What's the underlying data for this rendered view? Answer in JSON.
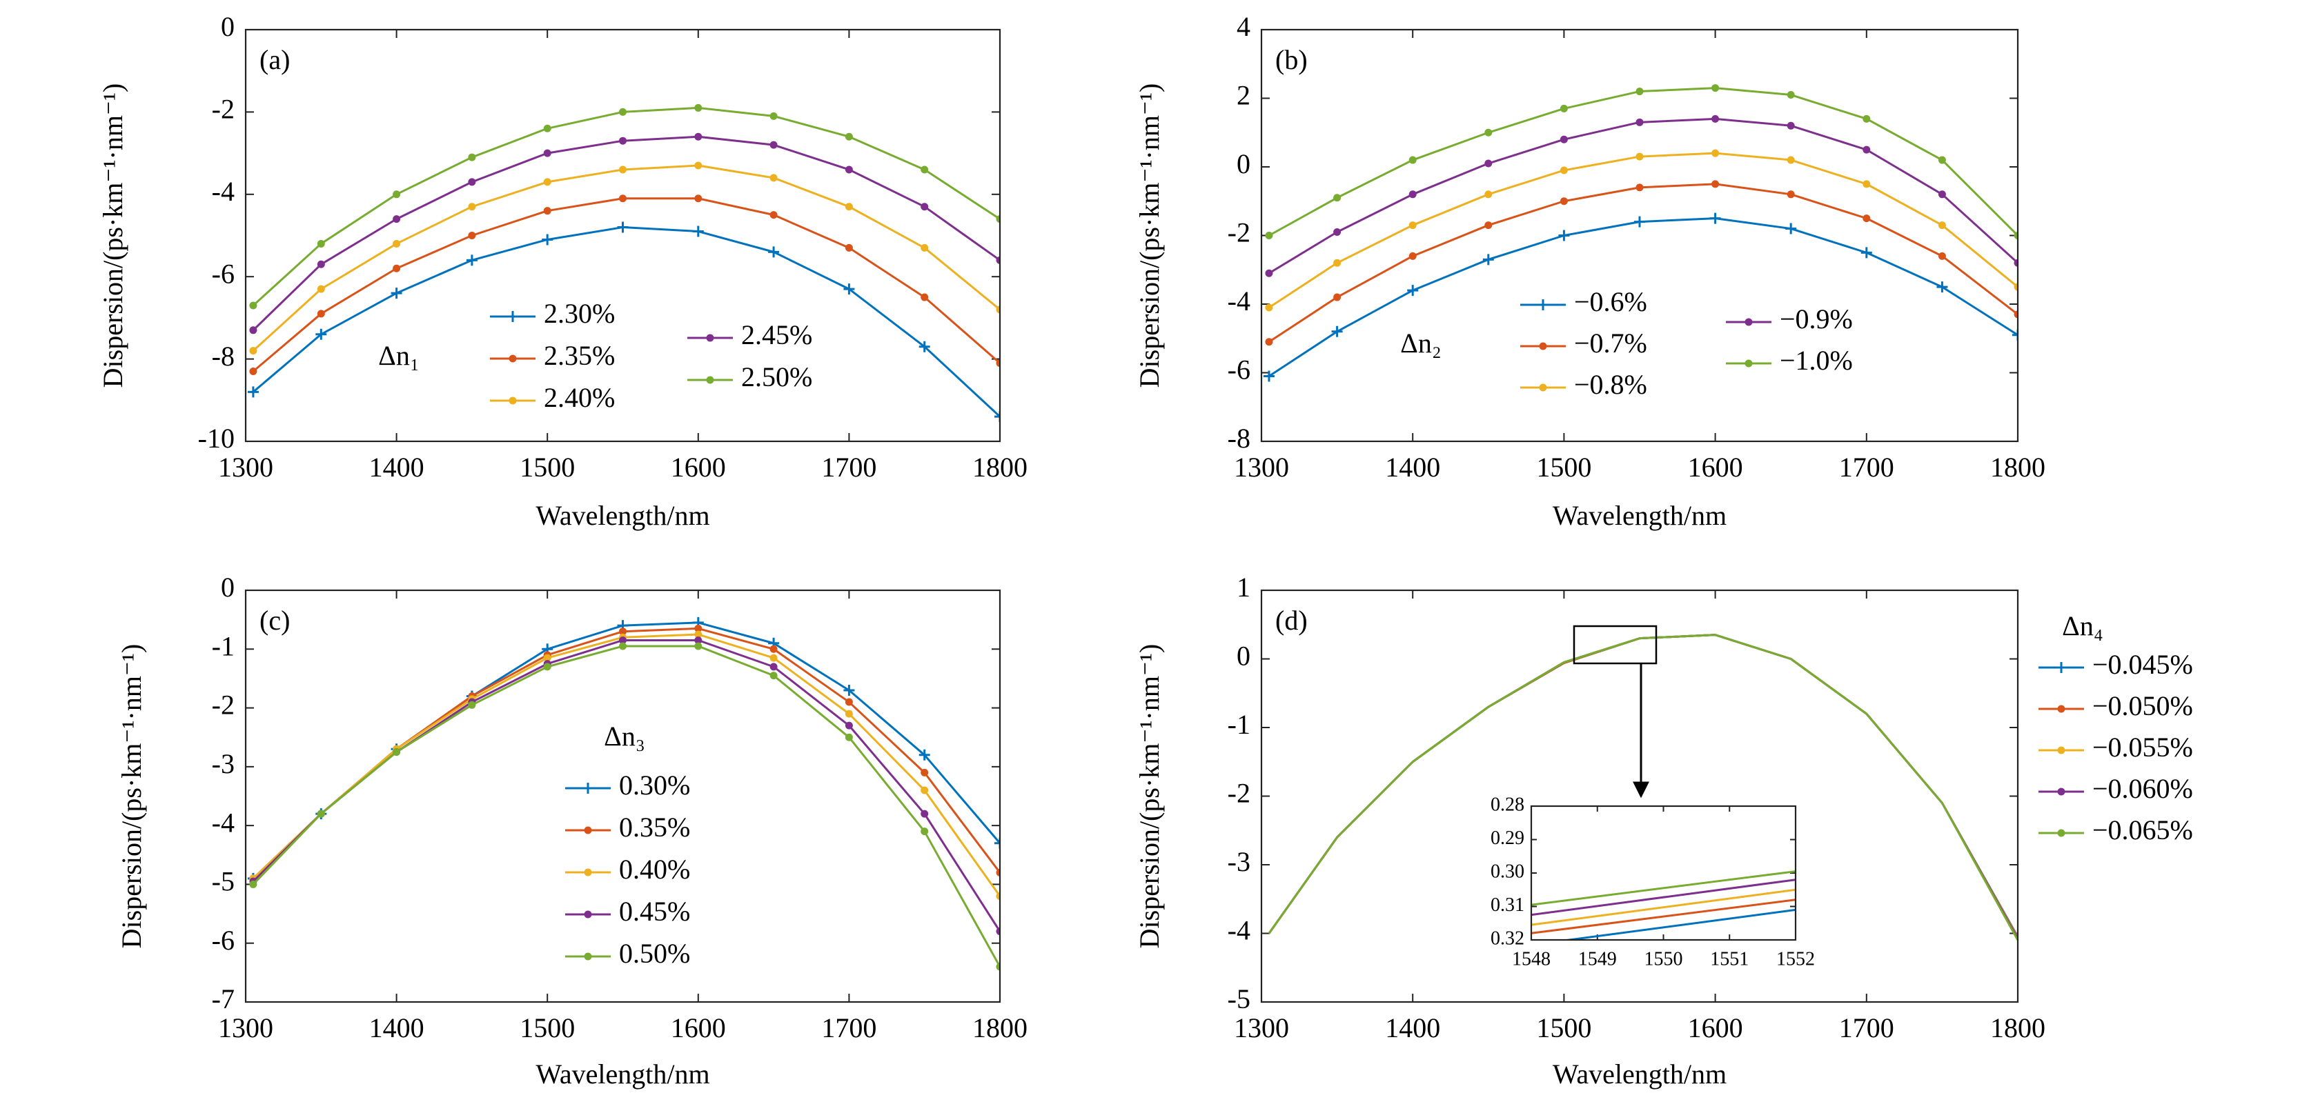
{
  "chart_data": [
    {
      "type": "line",
      "annotation": "(a)",
      "x_label": "Wavelength/nm",
      "y_label": "Dispersion/(ps·km⁻¹·nm⁻¹)",
      "xlim": [
        1300,
        1800
      ],
      "xticks": [
        1300,
        1400,
        1500,
        1600,
        1700,
        1800
      ],
      "ylim": [
        -10,
        0
      ],
      "yticks": [
        -10,
        -8,
        -6,
        -4,
        -2,
        0
      ],
      "markers": true,
      "legend_title": "Δn₁",
      "legend_columns": 2,
      "x": [
        1305,
        1350,
        1400,
        1450,
        1500,
        1550,
        1600,
        1650,
        1700,
        1750,
        1800
      ],
      "series": [
        {
          "name": "2.30%",
          "color": "#0072bd",
          "values": [
            -8.8,
            -7.4,
            -6.4,
            -5.6,
            -5.1,
            -4.8,
            -4.9,
            -5.4,
            -6.3,
            -7.7,
            -9.4
          ]
        },
        {
          "name": "2.35%",
          "color": "#d95319",
          "values": [
            -8.3,
            -6.9,
            -5.8,
            -5.0,
            -4.4,
            -4.1,
            -4.1,
            -4.5,
            -5.3,
            -6.5,
            -8.1
          ]
        },
        {
          "name": "2.40%",
          "color": "#edb120",
          "values": [
            -7.8,
            -6.3,
            -5.2,
            -4.3,
            -3.7,
            -3.4,
            -3.3,
            -3.6,
            -4.3,
            -5.3,
            -6.8
          ]
        },
        {
          "name": "2.45%",
          "color": "#7e2f8e",
          "values": [
            -7.3,
            -5.7,
            -4.6,
            -3.7,
            -3.0,
            -2.7,
            -2.6,
            -2.8,
            -3.4,
            -4.3,
            -5.6
          ]
        },
        {
          "name": "2.50%",
          "color": "#77ac30",
          "values": [
            -6.7,
            -5.2,
            -4.0,
            -3.1,
            -2.4,
            -2.0,
            -1.9,
            -2.1,
            -2.6,
            -3.4,
            -4.6
          ]
        }
      ]
    },
    {
      "type": "line",
      "annotation": "(b)",
      "x_label": "Wavelength/nm",
      "y_label": "Dispersion/(ps·km⁻¹·nm⁻¹)",
      "xlim": [
        1300,
        1800
      ],
      "xticks": [
        1300,
        1400,
        1500,
        1600,
        1700,
        1800
      ],
      "ylim": [
        -8,
        4
      ],
      "yticks": [
        -8,
        -6,
        -4,
        -2,
        0,
        2,
        4
      ],
      "markers": true,
      "legend_title": "Δn₂",
      "legend_columns": 2,
      "x": [
        1305,
        1350,
        1400,
        1450,
        1500,
        1550,
        1600,
        1650,
        1700,
        1750,
        1800
      ],
      "series": [
        {
          "name": "−0.6%",
          "color": "#0072bd",
          "values": [
            -6.1,
            -4.8,
            -3.6,
            -2.7,
            -2.0,
            -1.6,
            -1.5,
            -1.8,
            -2.5,
            -3.5,
            -4.9
          ]
        },
        {
          "name": "−0.7%",
          "color": "#d95319",
          "values": [
            -5.1,
            -3.8,
            -2.6,
            -1.7,
            -1.0,
            -0.6,
            -0.5,
            -0.8,
            -1.5,
            -2.6,
            -4.3
          ]
        },
        {
          "name": "−0.8%",
          "color": "#edb120",
          "values": [
            -4.1,
            -2.8,
            -1.7,
            -0.8,
            -0.1,
            0.3,
            0.4,
            0.2,
            -0.5,
            -1.7,
            -3.5
          ]
        },
        {
          "name": "−0.9%",
          "color": "#7e2f8e",
          "values": [
            -3.1,
            -1.9,
            -0.8,
            0.1,
            0.8,
            1.3,
            1.4,
            1.2,
            0.5,
            -0.8,
            -2.8
          ]
        },
        {
          "name": "−1.0%",
          "color": "#77ac30",
          "values": [
            -2.0,
            -0.9,
            0.2,
            1.0,
            1.7,
            2.2,
            2.3,
            2.1,
            1.4,
            0.2,
            -2.0
          ]
        }
      ]
    },
    {
      "type": "line",
      "annotation": "(c)",
      "x_label": "Wavelength/nm",
      "y_label": "Dispersion/(ps·km⁻¹·nm⁻¹)",
      "xlim": [
        1300,
        1800
      ],
      "xticks": [
        1300,
        1400,
        1500,
        1600,
        1700,
        1800
      ],
      "ylim": [
        -7,
        0
      ],
      "yticks": [
        -7,
        -6,
        -5,
        -4,
        -3,
        -2,
        -1,
        0
      ],
      "markers": true,
      "legend_title": "Δn₃",
      "legend_columns": 1,
      "x": [
        1305,
        1350,
        1400,
        1450,
        1500,
        1550,
        1600,
        1650,
        1700,
        1750,
        1800
      ],
      "series": [
        {
          "name": "0.30%",
          "color": "#0072bd",
          "values": [
            -4.9,
            -3.8,
            -2.7,
            -1.8,
            -1.0,
            -0.6,
            -0.55,
            -0.9,
            -1.7,
            -2.8,
            -4.3
          ]
        },
        {
          "name": "0.35%",
          "color": "#d95319",
          "values": [
            -4.9,
            -3.8,
            -2.7,
            -1.8,
            -1.1,
            -0.7,
            -0.65,
            -1.0,
            -1.9,
            -3.1,
            -4.8
          ]
        },
        {
          "name": "0.40%",
          "color": "#edb120",
          "values": [
            -4.9,
            -3.8,
            -2.7,
            -1.85,
            -1.15,
            -0.8,
            -0.75,
            -1.15,
            -2.1,
            -3.4,
            -5.2
          ]
        },
        {
          "name": "0.45%",
          "color": "#7e2f8e",
          "values": [
            -4.95,
            -3.8,
            -2.75,
            -1.9,
            -1.25,
            -0.85,
            -0.85,
            -1.3,
            -2.3,
            -3.8,
            -5.8
          ]
        },
        {
          "name": "0.50%",
          "color": "#77ac30",
          "values": [
            -5.0,
            -3.8,
            -2.75,
            -1.95,
            -1.3,
            -0.95,
            -0.95,
            -1.45,
            -2.5,
            -4.1,
            -6.4
          ]
        }
      ]
    },
    {
      "type": "line",
      "annotation": "(d)",
      "x_label": "Wavelength/nm",
      "y_label": "Dispersion/(ps·km⁻¹·nm⁻¹)",
      "xlim": [
        1300,
        1800
      ],
      "xticks": [
        1300,
        1400,
        1500,
        1600,
        1700,
        1800
      ],
      "ylim": [
        -5,
        1
      ],
      "yticks": [
        -5,
        -4,
        -3,
        -2,
        -1,
        0,
        1
      ],
      "markers": false,
      "legend_title": "Δn₄",
      "legend_columns": 1,
      "x": [
        1305,
        1350,
        1400,
        1450,
        1500,
        1550,
        1600,
        1650,
        1700,
        1750,
        1800
      ],
      "series": [
        {
          "name": "−0.045%",
          "color": "#0072bd",
          "values": [
            -4.0,
            -2.6,
            -1.5,
            -0.7,
            -0.06,
            0.3,
            0.35,
            0.0,
            -0.8,
            -2.1,
            -4.05
          ]
        },
        {
          "name": "−0.050%",
          "color": "#d95319",
          "values": [
            -4.0,
            -2.6,
            -1.5,
            -0.7,
            -0.06,
            0.3,
            0.35,
            0.0,
            -0.8,
            -2.1,
            -4.06
          ]
        },
        {
          "name": "−0.055%",
          "color": "#edb120",
          "values": [
            -4.0,
            -2.6,
            -1.5,
            -0.7,
            -0.05,
            0.3,
            0.35,
            0.0,
            -0.8,
            -2.1,
            -4.07
          ]
        },
        {
          "name": "−0.060%",
          "color": "#7e2f8e",
          "values": [
            -4.0,
            -2.6,
            -1.5,
            -0.7,
            -0.05,
            0.3,
            0.35,
            0.0,
            -0.8,
            -2.1,
            -4.08
          ]
        },
        {
          "name": "−0.065%",
          "color": "#77ac30",
          "values": [
            -4.0,
            -2.6,
            -1.5,
            -0.7,
            -0.05,
            0.3,
            0.35,
            0.0,
            -0.8,
            -2.1,
            -4.1
          ]
        }
      ]
    },
    {
      "type": "line",
      "xlim": [
        1548,
        1552
      ],
      "xticks": [
        1548,
        1549,
        1550,
        1551,
        1552
      ],
      "ylim": [
        0.32,
        0.28
      ],
      "yticks": [
        0.28,
        0.29,
        {
          "value": 0.3,
          "label": "0.30"
        },
        0.31,
        0.32
      ],
      "markers": false,
      "x": [
        1548,
        1552
      ],
      "series": [
        {
          "color": "#0072bd",
          "values": [
            0.3215,
            0.311
          ]
        },
        {
          "color": "#d95319",
          "values": [
            0.318,
            0.308
          ]
        },
        {
          "color": "#edb120",
          "values": [
            0.3155,
            0.305
          ]
        },
        {
          "color": "#7e2f8e",
          "values": [
            0.3125,
            0.302
          ]
        },
        {
          "color": "#77ac30",
          "values": [
            0.3095,
            0.2995
          ]
        }
      ]
    }
  ]
}
